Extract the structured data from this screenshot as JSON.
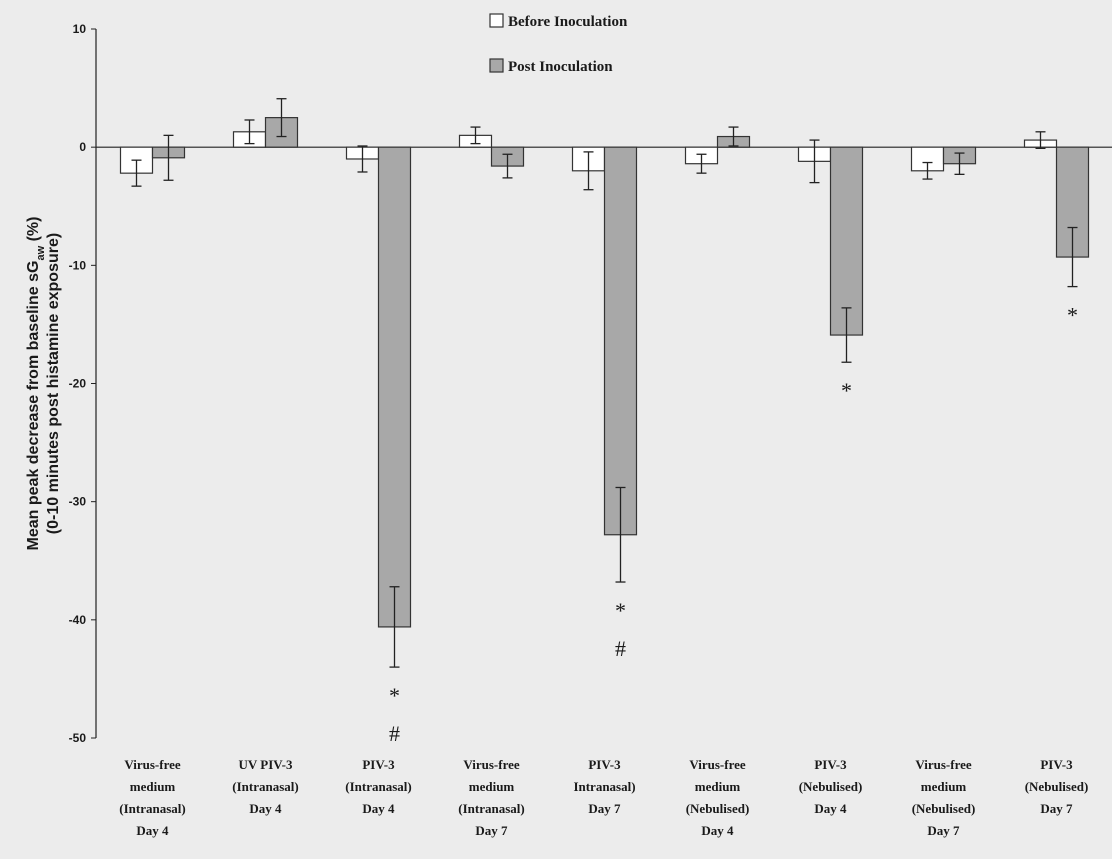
{
  "chart_data": {
    "type": "bar",
    "ylabel_line1": "Mean peak decrease from baseline sG",
    "ylabel_sub": "aw",
    "ylabel_tail": " (%)",
    "ylabel_line2": "(0-10 minutes post histamine exposure)",
    "ylim": [
      -50,
      10
    ],
    "yticks": [
      10,
      0,
      -10,
      -20,
      -30,
      -40,
      -50
    ],
    "grid": false,
    "legend_position": "top-center",
    "categories": [
      [
        "Virus-free",
        "medium",
        "(Intranasal)",
        "Day 4"
      ],
      [
        "UV PIV-3",
        "(Intranasal)",
        "Day 4"
      ],
      [
        "PIV-3",
        "(Intranasal)",
        "Day 4"
      ],
      [
        "Virus-free",
        "medium",
        "(Intranasal)",
        "Day 7"
      ],
      [
        "PIV-3",
        "Intranasal)",
        "Day 7"
      ],
      [
        "Virus-free",
        "medium",
        "(Nebulised)",
        "Day 4"
      ],
      [
        "PIV-3",
        "(Nebulised)",
        "Day 4"
      ],
      [
        "Virus-free",
        "medium",
        "(Nebulised)",
        "Day 7"
      ],
      [
        "PIV-3",
        "(Nebulised)",
        "Day 7"
      ]
    ],
    "series": [
      {
        "name": "Before Inoculation",
        "color": "#ffffff",
        "values": [
          -2.2,
          1.3,
          -1.0,
          1.0,
          -2.0,
          -1.4,
          -1.2,
          -2.0,
          0.6
        ],
        "errors": [
          1.1,
          1.0,
          1.1,
          0.7,
          1.6,
          0.8,
          1.8,
          0.7,
          0.7
        ]
      },
      {
        "name": "Post Inoculation",
        "color": "#a8a8a8",
        "values": [
          -0.9,
          2.5,
          -40.6,
          -1.6,
          -32.8,
          0.9,
          -15.9,
          -1.4,
          -9.3
        ],
        "errors": [
          1.9,
          1.6,
          3.4,
          1.0,
          4.0,
          0.8,
          2.3,
          0.9,
          2.5
        ]
      }
    ],
    "annotations": [
      {
        "category_index": 2,
        "marks": [
          "*",
          "#"
        ]
      },
      {
        "category_index": 4,
        "marks": [
          "*",
          "#"
        ]
      },
      {
        "category_index": 6,
        "marks": [
          "*"
        ]
      },
      {
        "category_index": 8,
        "marks": [
          "*"
        ]
      }
    ]
  }
}
